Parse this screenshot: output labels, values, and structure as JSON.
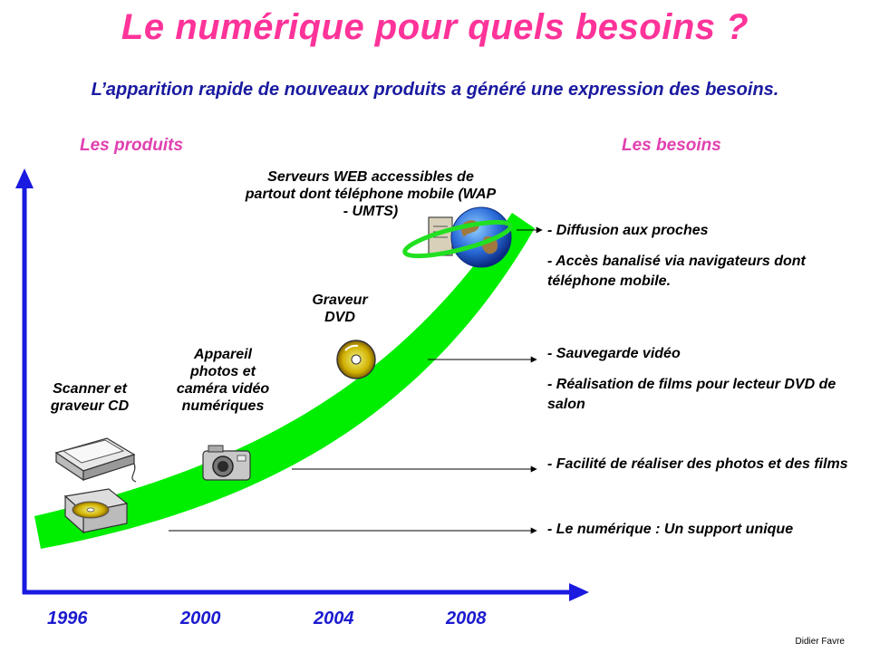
{
  "title": "Le numérique pour quels besoins ?",
  "subtitle": "L’apparition rapide de nouveaux produits a généré une expression des besoins.",
  "headers": {
    "products": "Les produits",
    "needs": "Les besoins"
  },
  "years": [
    "1996",
    "2000",
    "2004",
    "2008"
  ],
  "products": {
    "scanner": "Scanner et graveur CD",
    "camera": "Appareil photos et caméra vidéo numériques",
    "dvd": "Graveur DVD",
    "web": "Serveurs WEB accessibles de partout dont téléphone mobile (WAP - UMTS)"
  },
  "needs": {
    "diffusion": "- Diffusion aux proches",
    "acces": "- Accès banalisé via navigateurs dont téléphone mobile.",
    "sauvegarde": "- Sauvegarde vidéo",
    "films": "- Réalisation de films pour lecteur DVD de salon",
    "photos": "- Facilité de réaliser des photos et des films",
    "support": "-  Le numérique : Un support unique"
  },
  "author": "Didier Favre",
  "colors": {
    "title": "#ff3399",
    "subtitle": "#1a1aa0",
    "axis": "#1a1ae0",
    "band": "#00ee00",
    "headers": "#e040b0"
  }
}
